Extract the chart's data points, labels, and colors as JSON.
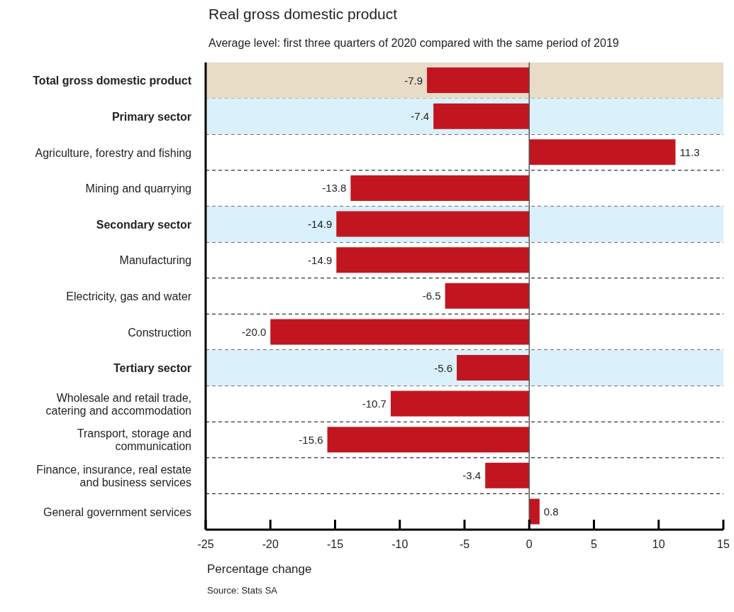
{
  "chart_data": {
    "type": "bar",
    "orientation": "horizontal",
    "title": "Real gross domestic product",
    "subtitle": "Average level: first three quarters of 2020 compared with the same period of 2019",
    "xlabel": "Percentage change",
    "annotations": [
      "Source: Stats SA"
    ],
    "categories": [
      "Total gross domestic product",
      "Primary sector",
      "Agriculture, forestry and fishing",
      "Mining and quarrying",
      "Secondary sector",
      "Manufacturing",
      "Electricity, gas and water",
      "Construction",
      "Tertiary sector",
      "Wholesale and retail trade, catering and accommodation",
      "Transport, storage and communication",
      "Finance, insurance, real estate and business services",
      "General government services"
    ],
    "values": [
      -7.9,
      -7.4,
      11.3,
      -13.8,
      -14.9,
      -14.9,
      -6.5,
      -20.0,
      -5.6,
      -10.7,
      -15.6,
      -3.4,
      0.8
    ],
    "value_labels": [
      "-7.9",
      "-7.4",
      "11.3",
      "-13.8",
      "-14.9",
      "-14.9",
      "-6.5",
      "-20.0",
      "-5.6",
      "-10.7",
      "-15.6",
      "-3.4",
      "0.8"
    ],
    "color": "#c1161f",
    "xlim": [
      -25,
      15
    ],
    "xticks": [
      -25,
      -20,
      -15,
      -10,
      -5,
      0,
      5,
      10,
      15
    ],
    "ref_lines": [
      {
        "axis": "x",
        "value": 0,
        "color": "#555555"
      }
    ],
    "bands": [
      {
        "axis": "y",
        "from": "Total gross domestic product",
        "to": "Total gross domestic product",
        "color": "#e8dcc6"
      },
      {
        "axis": "y",
        "from": "Primary sector",
        "to": "Primary sector",
        "color": "#daf0fa"
      },
      {
        "axis": "y",
        "from": "Secondary sector",
        "to": "Secondary sector",
        "color": "#daf0fa"
      },
      {
        "axis": "y",
        "from": "Tertiary sector",
        "to": "Tertiary sector",
        "color": "#daf0fa"
      }
    ],
    "grid": "y"
  }
}
